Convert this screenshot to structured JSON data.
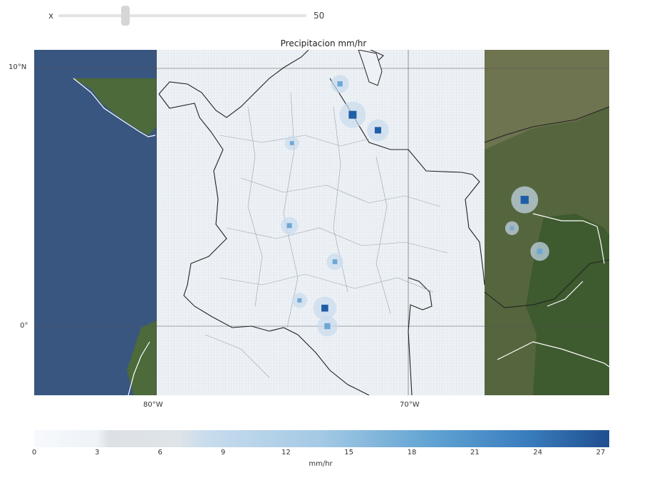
{
  "slider": {
    "left_label": "x",
    "value_label": "50",
    "position": 0.27
  },
  "map": {
    "title": "Precipitacion mm/hr",
    "lat_labels": [
      "10°N",
      "0°"
    ],
    "lon_labels": [
      "80°W",
      "70°W"
    ],
    "colors": {
      "ocean": "#395680",
      "land": "#4c6a3a",
      "grid_area": "#eef2f6",
      "rain_low": "#c9dcee",
      "rain_mid": "#6ea7d4",
      "rain_high": "#1f5ea6"
    },
    "precip_hotspots": [
      {
        "lon": -72.2,
        "lat": 8.2,
        "value": 24
      },
      {
        "lon": -71.2,
        "lat": 7.6,
        "value": 18
      },
      {
        "lon": -65.4,
        "lat": 4.9,
        "value": 25
      },
      {
        "lon": -64.8,
        "lat": 2.9,
        "value": 14
      },
      {
        "lon": -73.3,
        "lat": 0.7,
        "value": 20
      },
      {
        "lon": -73.2,
        "lat": 0.0,
        "value": 16
      },
      {
        "lon": -74.7,
        "lat": 3.9,
        "value": 12
      },
      {
        "lon": -72.9,
        "lat": 2.5,
        "value": 11
      },
      {
        "lon": -72.7,
        "lat": 9.4,
        "value": 13
      },
      {
        "lon": -74.6,
        "lat": 7.1,
        "value": 8
      },
      {
        "lon": -74.3,
        "lat": 1.0,
        "value": 9
      },
      {
        "lon": -65.9,
        "lat": 3.8,
        "value": 7
      }
    ]
  },
  "colorbar": {
    "ticks": [
      "0",
      "3",
      "6",
      "9",
      "12",
      "15",
      "18",
      "21",
      "24",
      "27"
    ],
    "unit": "mm/hr",
    "min": 0,
    "max": 27
  }
}
